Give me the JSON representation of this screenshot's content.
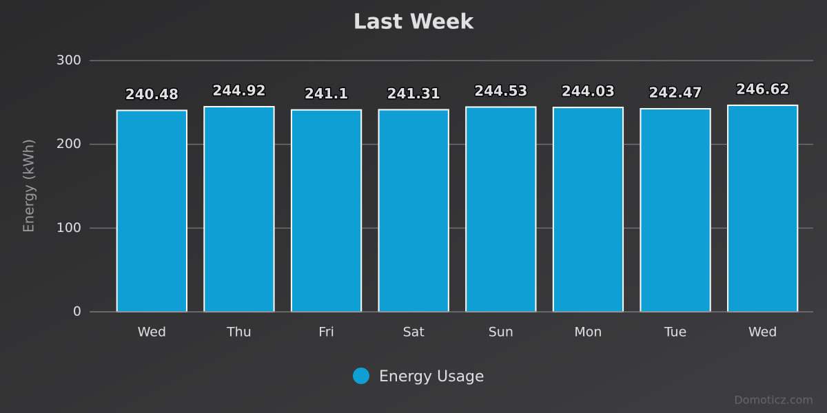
{
  "chart_data": {
    "type": "bar",
    "title": "Last Week",
    "y_label": "Energy (kWh)",
    "categories": [
      "Wed",
      "Thu",
      "Fri",
      "Sat",
      "Sun",
      "Mon",
      "Tue",
      "Wed"
    ],
    "series": [
      {
        "name": "Energy Usage",
        "color": "#109fd4",
        "values": [
          240.48,
          244.92,
          241.1,
          241.31,
          244.53,
          244.03,
          242.47,
          246.62
        ]
      }
    ],
    "ylim": [
      0,
      300
    ],
    "yticks": [
      0,
      100,
      200,
      300
    ],
    "grid": true,
    "legend": "bottom",
    "data_labels": true,
    "credits": "Domoticz.com"
  }
}
